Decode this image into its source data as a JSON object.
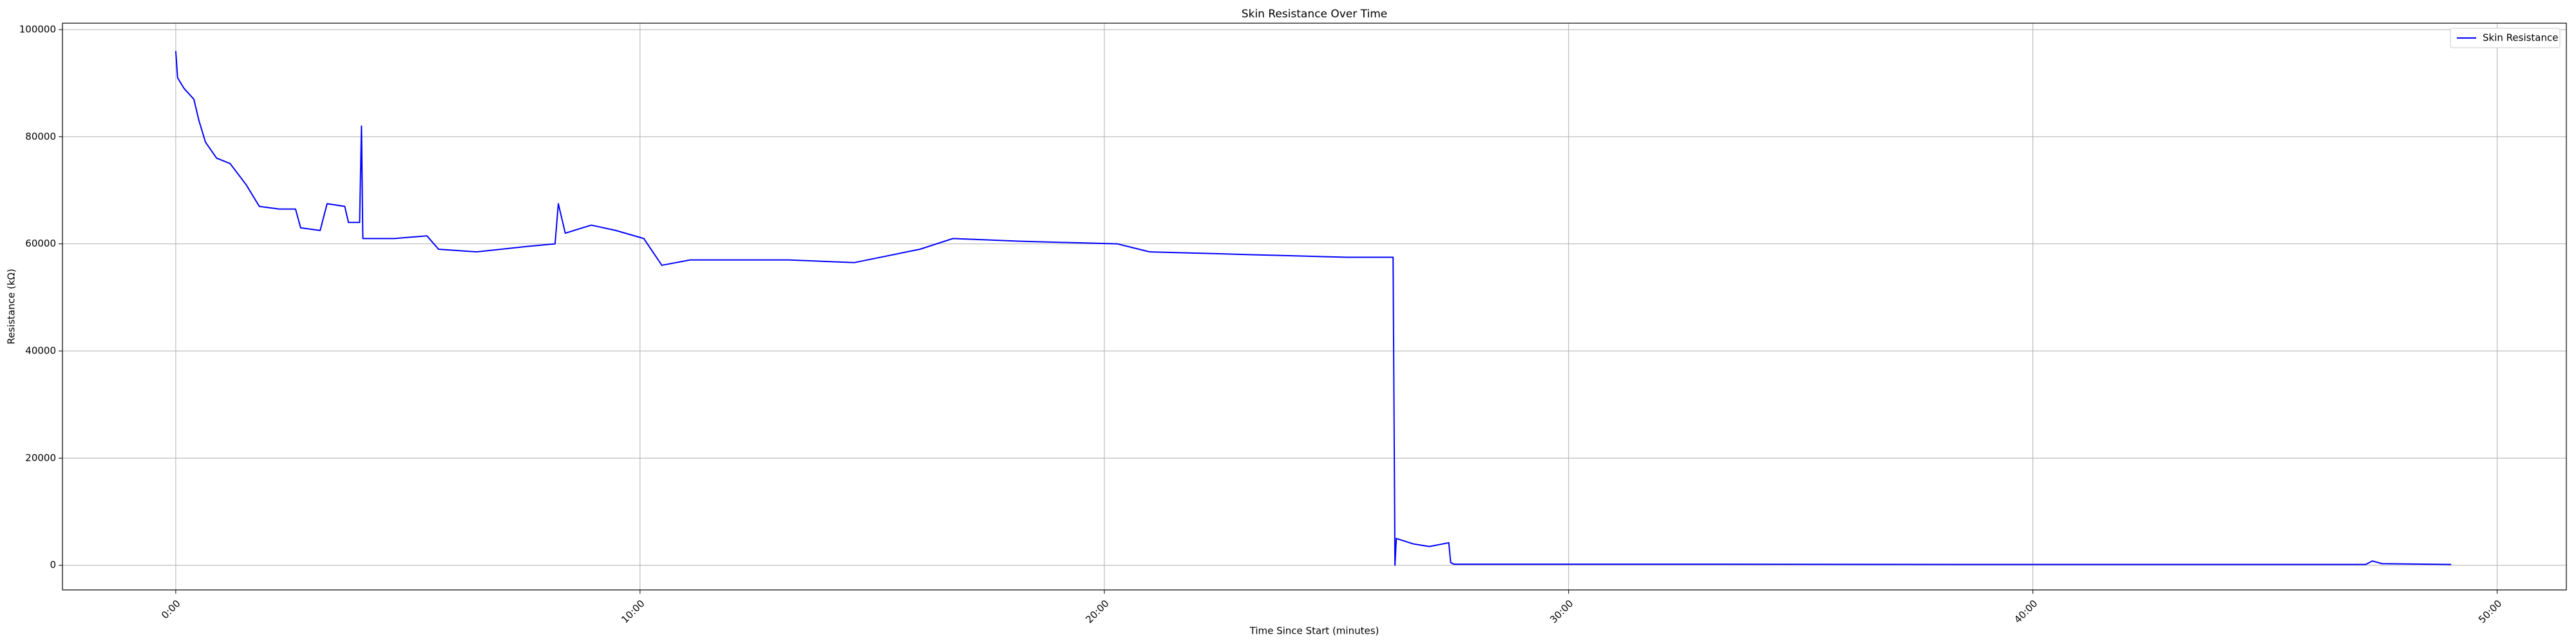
{
  "chart_data": {
    "type": "line",
    "title": "Skin Resistance Over Time",
    "x_label": "Time Since Start (minutes)",
    "y_label": "Resistance (kΩ)",
    "x": [
      0,
      0.04,
      0.18,
      0.39,
      0.5,
      0.64,
      0.88,
      1.17,
      1.52,
      1.8,
      2.23,
      2.58,
      2.69,
      3.11,
      3.26,
      3.64,
      3.72,
      3.96,
      4.0,
      4.03,
      4.71,
      5.41,
      5.66,
      6.48,
      7.54,
      8.17,
      8.24,
      8.39,
      8.95,
      9.48,
      10.08,
      10.47,
      11.08,
      13.2,
      14.61,
      16.03,
      16.74,
      18.15,
      20.28,
      20.98,
      23.11,
      25.23,
      26.22,
      26.26,
      26.29,
      26.65,
      27.0,
      27.42,
      27.46,
      27.53,
      31.6,
      38.68,
      47.17,
      47.31,
      47.52,
      49.01
    ],
    "series": [
      {
        "name": "Skin Resistance",
        "color": "#0000ff",
        "values": [
          96000,
          91000,
          89000,
          87000,
          83000,
          79000,
          76000,
          75000,
          71000,
          67000,
          66500,
          66500,
          63000,
          62500,
          67500,
          67000,
          64000,
          64000,
          82000,
          61000,
          61000,
          61500,
          59000,
          58500,
          59500,
          60000,
          67500,
          62000,
          63500,
          62500,
          61000,
          56000,
          57000,
          57000,
          56500,
          59000,
          61000,
          60500,
          60000,
          58500,
          58000,
          57500,
          57500,
          0,
          5000,
          4000,
          3500,
          4200,
          500,
          200,
          200,
          150,
          150,
          800,
          300,
          150
        ]
      }
    ],
    "xlim": [
      -2.44,
      51.49
    ],
    "ylim": [
      -4600,
      101200
    ],
    "xticks": [
      {
        "value": 0,
        "label": "0:00"
      },
      {
        "value": 10,
        "label": "10:00"
      },
      {
        "value": 20,
        "label": "20:00"
      },
      {
        "value": 30,
        "label": "30:00"
      },
      {
        "value": 40,
        "label": "40:00"
      },
      {
        "value": 50,
        "label": "50:00"
      }
    ],
    "yticks": [
      0,
      20000,
      40000,
      60000,
      80000,
      100000
    ],
    "grid": true,
    "legend": "upper right"
  }
}
